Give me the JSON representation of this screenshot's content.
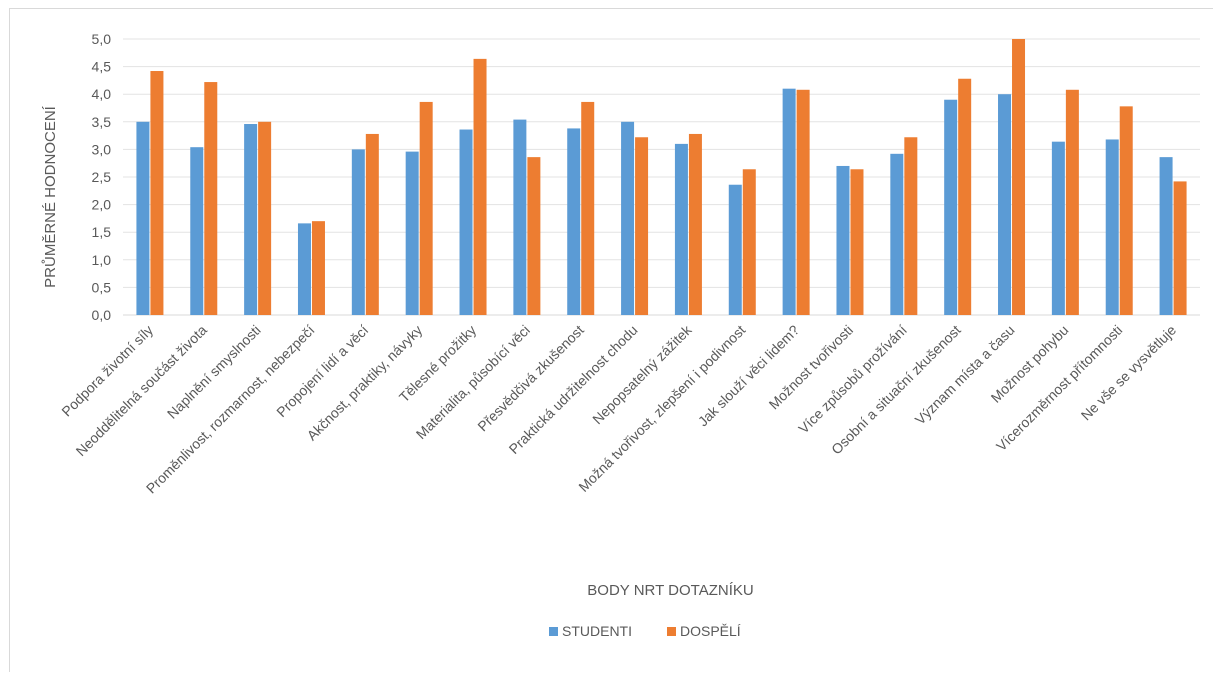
{
  "chart_data": {
    "type": "bar",
    "title": "",
    "xlabel": "BODY NRT DOTAZNÍKU",
    "ylabel": "PRŮMĚRNÉ HODNOCENÍ",
    "ylim": [
      0,
      5
    ],
    "ytick_step": 0.5,
    "ytick_labels": [
      "0,0",
      "0,5",
      "1,0",
      "1,5",
      "2,0",
      "2,5",
      "3,0",
      "3,5",
      "4,0",
      "4,5",
      "5,0"
    ],
    "grid": true,
    "legend_position": "bottom",
    "categories": [
      "Podpora životní síly",
      "Neoddělitelná součást života",
      "Naplnění smyslnosti",
      "Proměnlivost, rozmarnost, nebezpečí",
      "Propojení lidí a věcí",
      "Akčnost, praktiky, návyky",
      "Tělesné prožitky",
      "Materialita, působící věci",
      "Přesvědčivá zkušenost",
      "Praktická udržitelnost chodu",
      "Nepopsatelný zážitek",
      "Možná tvořivost, zlepšení i podivnost",
      "Jak slouží věci lidem?",
      "Možnost tvořivosti",
      "Více způsobů prožívání",
      "Osobní a situační zkušenost",
      "Význam místa a času",
      "Možnost pohybu",
      "Vícerozměrnost přítomnosti",
      "Ne vše se vysvětluje"
    ],
    "series": [
      {
        "name": "STUDENTI",
        "color": "#5b9bd5",
        "values": [
          3.5,
          3.04,
          3.46,
          1.66,
          3.0,
          2.96,
          3.36,
          3.54,
          3.38,
          3.5,
          3.1,
          2.36,
          4.1,
          2.7,
          2.92,
          3.9,
          4.0,
          3.14,
          3.18,
          2.86
        ]
      },
      {
        "name": "DOSPĚLÍ",
        "color": "#ed7d31",
        "values": [
          4.42,
          4.22,
          3.5,
          1.7,
          3.28,
          3.86,
          4.64,
          2.86,
          3.86,
          3.22,
          3.28,
          2.64,
          4.08,
          2.64,
          3.22,
          4.28,
          5.0,
          4.08,
          3.78,
          2.42
        ]
      }
    ]
  }
}
